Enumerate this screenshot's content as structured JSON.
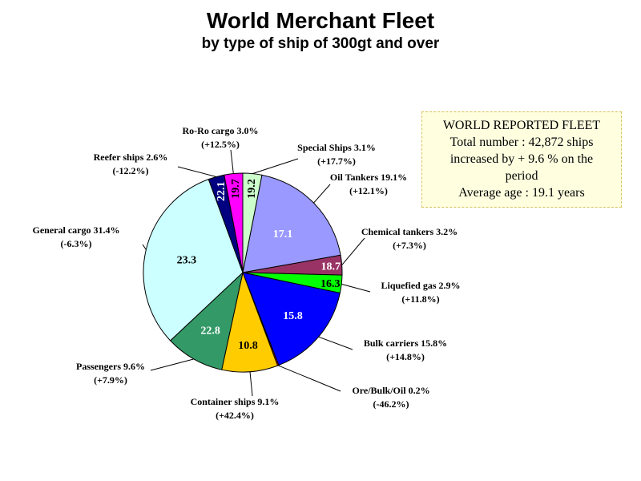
{
  "chart_data": {
    "type": "pie",
    "title": "World Merchant Fleet",
    "subtitle": "by type of ship of 300gt and over",
    "slices": [
      {
        "name": "Special Ships",
        "share": "3.1%",
        "change": "(+17.7%)",
        "percent": 3.1,
        "age": "19.2",
        "color": "#ccffcc"
      },
      {
        "name": "Oil Tankers",
        "share": "19.1%",
        "change": "(+12.1%)",
        "percent": 19.1,
        "age": "17.1",
        "color": "#9999ff"
      },
      {
        "name": "Chemical tankers",
        "share": "3.2%",
        "change": "(+7.3%)",
        "percent": 3.2,
        "age": "18.7",
        "color": "#993366"
      },
      {
        "name": "Liquefied gas",
        "share": "2.9%",
        "change": "(+11.8%)",
        "percent": 2.9,
        "age": "16.3",
        "color": "#00ff00"
      },
      {
        "name": "Bulk carriers",
        "share": "15.8%",
        "change": "(+14.8%)",
        "percent": 15.8,
        "age": "15.8",
        "color": "#0000ff"
      },
      {
        "name": "Ore/Bulk/Oil",
        "share": "0.2%",
        "change": "(-46.2%)",
        "percent": 0.2,
        "age": "",
        "color": "#ff0000"
      },
      {
        "name": "Container ships",
        "share": "9.1%",
        "change": "(+42.4%)",
        "percent": 9.1,
        "age": "10.8",
        "color": "#ffcc00"
      },
      {
        "name": "Passengers",
        "share": "9.6%",
        "change": "(+7.9%)",
        "percent": 9.6,
        "age": "22.8",
        "color": "#339966"
      },
      {
        "name": "General cargo",
        "share": "31.4%",
        "change": "(-6.3%)",
        "percent": 31.4,
        "age": "23.3",
        "color": "#ccffff"
      },
      {
        "name": "Reefer ships",
        "share": "2.6%",
        "change": "(-12.2%)",
        "percent": 2.6,
        "age": "22.1",
        "color": "#000080"
      },
      {
        "name": "Ro-Ro cargo",
        "share": "3.0%",
        "change": "(+12.5%)",
        "percent": 3.0,
        "age": "19.7",
        "color": "#ff00ff"
      }
    ]
  },
  "infobox": {
    "line1": "WORLD REPORTED FLEET",
    "line2": "Total number : 42,872 ships",
    "line3": "increased by + 9.6 % on the",
    "line4": "period",
    "line5": "Average age : 19.1 years"
  }
}
